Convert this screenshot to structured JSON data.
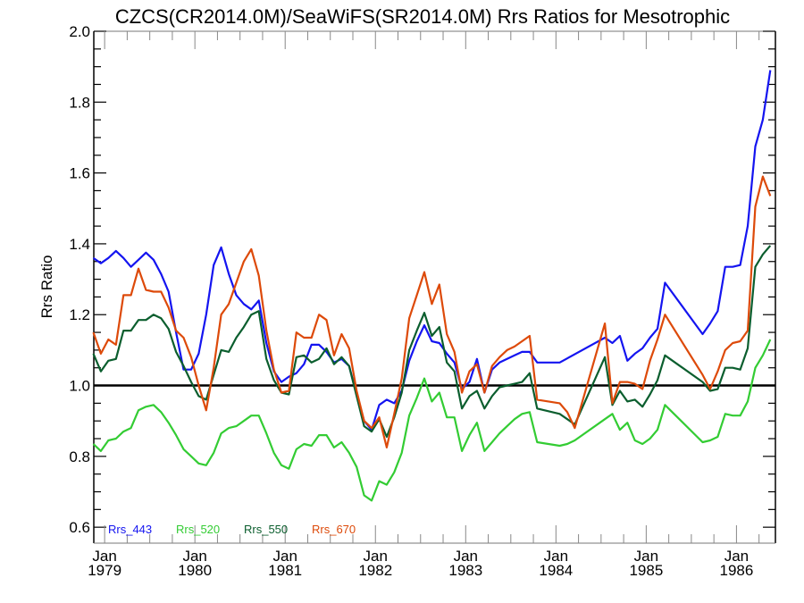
{
  "chart_data": {
    "type": "line",
    "title": "CZCS(CR2014.0M)/SeaWiFS(SR2014.0M)  Rrs Ratios for Mesotrophic",
    "xlabel": "",
    "ylabel": "Rrs Ratio",
    "ylim": [
      0.555,
      2.0
    ],
    "y_ticks": [
      "0.6",
      "0.8",
      "1.0",
      "1.2",
      "1.4",
      "1.6",
      "1.8",
      "2.0"
    ],
    "y_tick_values": [
      0.6,
      0.8,
      1.0,
      1.2,
      1.4,
      1.6,
      1.8,
      2.0
    ],
    "y_minor_step": 0.05,
    "x_start": "Nov 1978",
    "x_end": "May 1986",
    "x_ticks": [
      {
        "month": "Jan",
        "year": "1979"
      },
      {
        "month": "Jan",
        "year": "1980"
      },
      {
        "month": "Jan",
        "year": "1981"
      },
      {
        "month": "Jan",
        "year": "1982"
      },
      {
        "month": "Jan",
        "year": "1983"
      },
      {
        "month": "Jan",
        "year": "1984"
      },
      {
        "month": "Jan",
        "year": "1985"
      },
      {
        "month": "Jan",
        "year": "1986"
      }
    ],
    "x_tick_month_index": [
      2,
      14,
      26,
      38,
      50,
      62,
      74,
      86
    ],
    "reference_line": 1.0,
    "grid": false,
    "legend_position": "bottom-left",
    "series": [
      {
        "name": "Rrs_443",
        "color": "#1414f0",
        "values": [
          1.36,
          1.345,
          1.36,
          1.38,
          1.36,
          1.335,
          1.355,
          1.375,
          1.355,
          1.315,
          1.265,
          1.15,
          1.045,
          1.045,
          1.09,
          1.2,
          1.34,
          1.39,
          1.315,
          1.255,
          1.23,
          1.215,
          1.24,
          1.12,
          1.04,
          1.01,
          1.025,
          1.035,
          1.06,
          1.115,
          1.115,
          1.095,
          1.065,
          1.075,
          1.055,
          0.975,
          0.9,
          0.875,
          0.945,
          0.96,
          0.95,
          0.985,
          1.07,
          1.125,
          1.17,
          1.125,
          1.12,
          1.09,
          1.065,
          0.99,
          1.01,
          1.075,
          0.98,
          1.045,
          1.065,
          1.075,
          1.085,
          1.095,
          1.095,
          1.065,
          null,
          null,
          1.065,
          null,
          null,
          null,
          null,
          null,
          1.135,
          1.12,
          1.14,
          1.07,
          1.09,
          1.105,
          1.135,
          1.16,
          1.29,
          null,
          null,
          null,
          null,
          1.145,
          1.175,
          1.21,
          1.335,
          1.335,
          1.34,
          1.45,
          1.675,
          1.75,
          1.89
        ]
      },
      {
        "name": "Rrs_520",
        "color": "#33cc33",
        "values": [
          0.835,
          0.815,
          0.845,
          0.85,
          0.87,
          0.88,
          0.93,
          0.94,
          0.945,
          0.925,
          0.895,
          0.86,
          0.82,
          0.8,
          0.78,
          0.775,
          0.81,
          0.865,
          0.88,
          0.885,
          0.9,
          0.915,
          0.915,
          0.865,
          0.81,
          0.775,
          0.765,
          0.82,
          0.835,
          0.83,
          0.86,
          0.86,
          0.825,
          0.84,
          0.81,
          0.77,
          0.69,
          0.675,
          0.73,
          0.72,
          0.755,
          0.81,
          0.915,
          0.965,
          1.02,
          0.955,
          0.98,
          0.91,
          0.91,
          0.815,
          0.86,
          0.895,
          0.815,
          0.84,
          0.865,
          0.885,
          0.905,
          0.92,
          0.925,
          0.84,
          null,
          null,
          0.83,
          0.835,
          0.845,
          null,
          null,
          null,
          0.905,
          0.92,
          0.875,
          0.895,
          0.845,
          0.835,
          0.85,
          0.875,
          0.945,
          null,
          null,
          null,
          null,
          0.84,
          0.845,
          0.855,
          0.92,
          0.915,
          0.915,
          0.955,
          1.05,
          1.085,
          1.13
        ]
      },
      {
        "name": "Rrs_550",
        "color": "#0b5e2e",
        "values": [
          1.09,
          1.04,
          1.07,
          1.075,
          1.155,
          1.155,
          1.185,
          1.185,
          1.2,
          1.19,
          1.16,
          1.095,
          1.055,
          1.01,
          0.97,
          0.96,
          1.03,
          1.1,
          1.095,
          1.135,
          1.165,
          1.2,
          1.21,
          1.075,
          1.015,
          0.98,
          0.975,
          1.08,
          1.085,
          1.065,
          1.075,
          1.105,
          1.06,
          1.08,
          1.055,
          0.97,
          0.885,
          0.87,
          0.905,
          0.855,
          0.91,
          0.98,
          1.1,
          1.155,
          1.205,
          1.14,
          1.165,
          1.065,
          1.04,
          0.935,
          0.97,
          0.985,
          0.935,
          0.97,
          0.995,
          1.0,
          1.005,
          1.01,
          1.035,
          0.935,
          null,
          null,
          0.92,
          0.905,
          0.89,
          null,
          null,
          null,
          1.08,
          0.945,
          0.985,
          0.955,
          0.96,
          0.94,
          0.975,
          1.015,
          1.085,
          null,
          null,
          null,
          null,
          1.01,
          0.985,
          0.99,
          1.05,
          1.05,
          1.045,
          1.105,
          1.335,
          1.37,
          1.395
        ]
      },
      {
        "name": "Rrs_670",
        "color": "#dd4a0a",
        "values": [
          1.15,
          1.09,
          1.13,
          1.115,
          1.255,
          1.255,
          1.33,
          1.27,
          1.265,
          1.265,
          1.22,
          1.155,
          1.135,
          1.08,
          1.0,
          0.93,
          1.05,
          1.2,
          1.23,
          1.29,
          1.35,
          1.385,
          1.31,
          1.155,
          1.045,
          0.98,
          0.985,
          1.15,
          1.135,
          1.135,
          1.2,
          1.185,
          1.085,
          1.145,
          1.105,
          0.985,
          0.9,
          0.88,
          0.91,
          0.825,
          0.92,
          1.02,
          1.19,
          1.255,
          1.32,
          1.23,
          1.285,
          1.145,
          1.095,
          0.98,
          1.04,
          1.06,
          0.98,
          1.055,
          1.08,
          1.1,
          1.11,
          1.125,
          1.14,
          0.96,
          null,
          null,
          0.95,
          0.925,
          0.88,
          null,
          null,
          null,
          1.175,
          0.95,
          1.01,
          1.01,
          1.005,
          0.99,
          1.07,
          1.13,
          1.2,
          null,
          null,
          null,
          null,
          1.03,
          0.99,
          1.04,
          1.1,
          1.12,
          1.125,
          1.155,
          1.505,
          1.59,
          1.535
        ]
      }
    ]
  }
}
